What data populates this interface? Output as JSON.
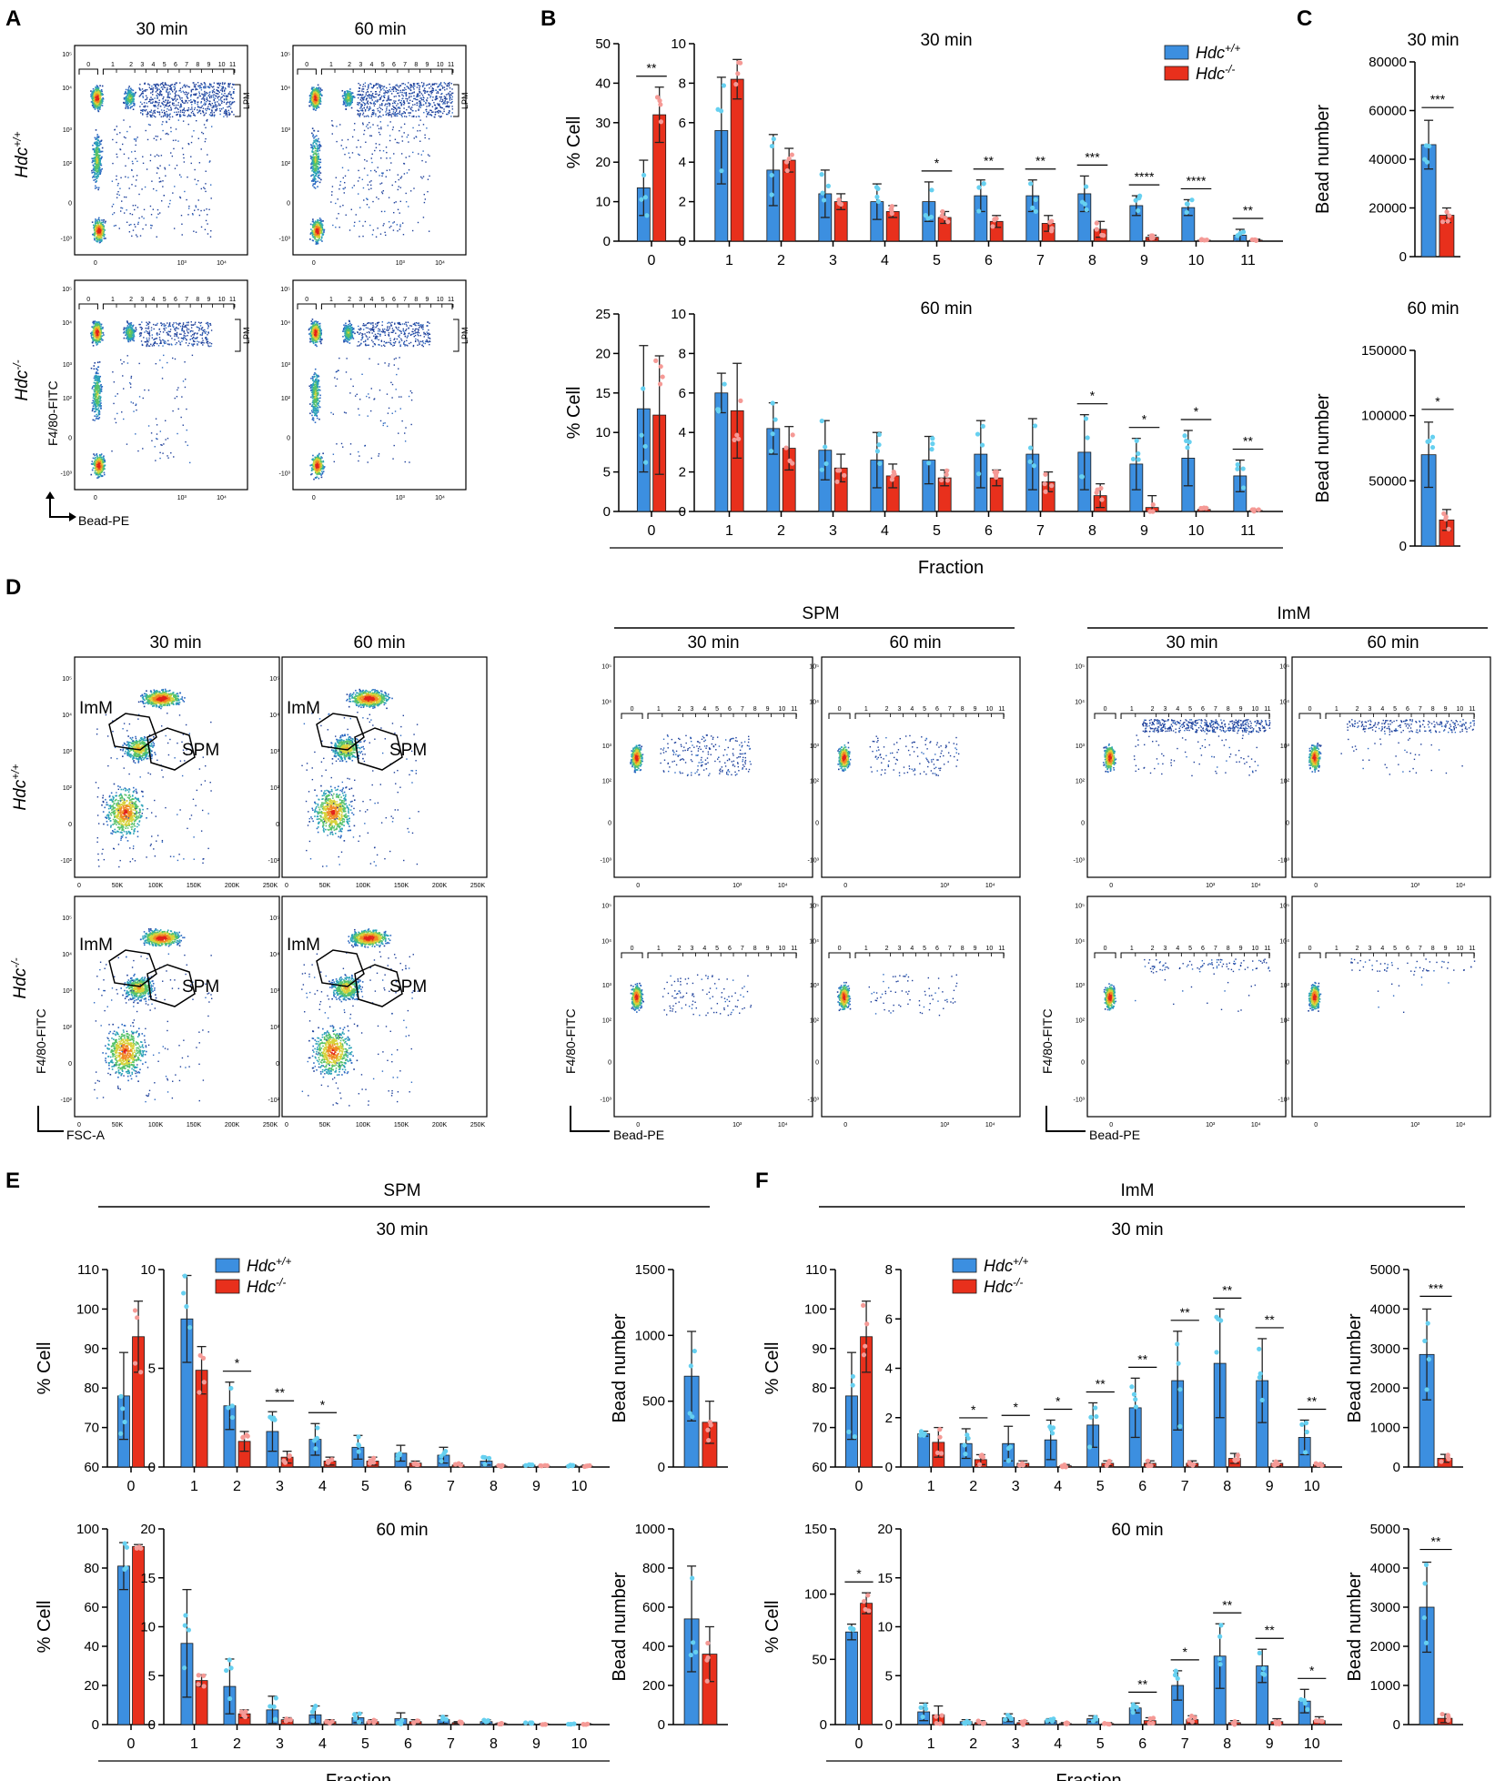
{
  "colors": {
    "wt": "#3c8fe0",
    "ko": "#e8301c",
    "wt_dot": "#66d0f0",
    "ko_dot": "#f59a96"
  },
  "panel_labels": {
    "A": "A",
    "B": "B",
    "C": "C",
    "D": "D",
    "E": "E",
    "F": "F"
  },
  "legend": {
    "wt_base": "Hdc",
    "wt_sup": "+/+",
    "ko_base": "Hdc",
    "ko_sup": "-/-"
  },
  "axis_labels": {
    "cell_pct": "% Cell",
    "bead_number": "Bead number",
    "fraction": "Fraction",
    "f480": "F4/80-FITC",
    "bead_pe": "Bead-PE",
    "fsc": "FSC-A"
  },
  "time_labels": {
    "t30": "30 min",
    "t60": "60 min"
  },
  "pop_labels": {
    "spm": "SPM",
    "imm": "ImM",
    "lpm": "LPM"
  },
  "genotype_labels": {
    "wt_base": "Hdc",
    "wt_sup": "+/+",
    "ko_base": "Hdc",
    "ko_sup": "-/-"
  },
  "flow": {
    "gate_labels": [
      "0",
      "1",
      "2",
      "3",
      "4",
      "5",
      "6",
      "7",
      "8",
      "9",
      "10",
      "11"
    ],
    "log_ticks_y": [
      "10⁵",
      "10⁴",
      "10³",
      "10²",
      "0",
      "-10³"
    ],
    "log_ticks_x": [
      "0",
      "10³",
      "10⁴"
    ],
    "fsc_ticks": [
      "0",
      "50K",
      "100K",
      "150K",
      "200K",
      "250K"
    ],
    "small_y": [
      "10⁵",
      "10⁴",
      "10³",
      "10²",
      "0",
      "-10²"
    ]
  },
  "chart_data": [
    {
      "id": "B30",
      "type": "bar",
      "title": "30 min",
      "ylabel": "% Cell",
      "categories": [
        "0",
        "1",
        "2",
        "3",
        "4",
        "5",
        "6",
        "7",
        "8",
        "9",
        "10",
        "11"
      ],
      "frac0": {
        "ylim": [
          0,
          50
        ],
        "ticks": [
          "0",
          "10",
          "20",
          "30",
          "40",
          "50"
        ],
        "series": [
          {
            "name": "Hdc+/+",
            "values": [
              13.5
            ],
            "err": [
              7
            ]
          },
          {
            "name": "Hdc-/-",
            "values": [
              32
            ],
            "err": [
              7
            ]
          }
        ],
        "sig": [
          "**"
        ]
      },
      "fractions": {
        "ylim": [
          0,
          10
        ],
        "ticks": [
          "0",
          "2",
          "4",
          "6",
          "8",
          "10"
        ],
        "series": [
          {
            "name": "Hdc+/+",
            "values": [
              5.6,
              3.6,
              2.4,
              2.0,
              2.0,
              2.3,
              2.3,
              2.4,
              1.8,
              1.7,
              0.3
            ],
            "err": [
              2.7,
              1.8,
              1.2,
              0.9,
              1.0,
              0.8,
              0.8,
              0.9,
              0.5,
              0.4,
              0.3
            ]
          },
          {
            "name": "Hdc-/-",
            "values": [
              8.2,
              4.1,
              2.0,
              1.5,
              1.2,
              1.0,
              0.9,
              0.6,
              0.2,
              0.05,
              0.05
            ],
            "err": [
              1.0,
              0.6,
              0.4,
              0.3,
              0.3,
              0.3,
              0.4,
              0.4,
              0.1,
              0.05,
              0.05
            ]
          }
        ],
        "sig": [
          "",
          "",
          "",
          "",
          "*",
          "**",
          "**",
          "***",
          "****",
          "****",
          "**"
        ]
      }
    },
    {
      "id": "B60",
      "type": "bar",
      "title": "60 min",
      "ylabel": "% Cell",
      "xlabel": "Fraction",
      "categories": [
        "0",
        "1",
        "2",
        "3",
        "4",
        "5",
        "6",
        "7",
        "8",
        "9",
        "10",
        "11"
      ],
      "frac0": {
        "ylim": [
          0,
          25
        ],
        "ticks": [
          "0",
          "5",
          "10",
          "15",
          "20",
          "25"
        ],
        "series": [
          {
            "name": "Hdc+/+",
            "values": [
              13
            ],
            "err": [
              8
            ]
          },
          {
            "name": "Hdc-/-",
            "values": [
              12.2
            ],
            "err": [
              7.5
            ]
          }
        ],
        "sig": [
          ""
        ]
      },
      "fractions": {
        "ylim": [
          0,
          10
        ],
        "ticks": [
          "0",
          "2",
          "4",
          "6",
          "8",
          "10"
        ],
        "series": [
          {
            "name": "Hdc+/+",
            "values": [
              6.0,
              4.2,
              3.1,
              2.6,
              2.6,
              2.9,
              2.9,
              3.0,
              2.4,
              2.7,
              1.8
            ],
            "err": [
              1.0,
              1.3,
              1.5,
              1.4,
              1.2,
              1.7,
              1.8,
              1.9,
              1.3,
              1.4,
              0.8
            ]
          },
          {
            "name": "Hdc-/-",
            "values": [
              5.1,
              3.2,
              2.2,
              1.8,
              1.7,
              1.7,
              1.5,
              0.8,
              0.2,
              0.1,
              0.05
            ],
            "err": [
              2.4,
              1.1,
              0.7,
              0.6,
              0.4,
              0.4,
              0.5,
              0.6,
              0.6,
              0.1,
              0.05
            ]
          }
        ],
        "sig": [
          "",
          "",
          "",
          "",
          "",
          "",
          "",
          "*",
          "*",
          "*",
          "**"
        ]
      }
    },
    {
      "id": "C30",
      "type": "bar",
      "title": "30 min",
      "ylabel": "Bead number",
      "ylim": [
        0,
        80000
      ],
      "ticks": [
        "0",
        "20000",
        "40000",
        "60000",
        "80000"
      ],
      "series": [
        {
          "name": "Hdc+/+",
          "values": [
            46000
          ],
          "err": [
            10000
          ]
        },
        {
          "name": "Hdc-/-",
          "values": [
            17000
          ],
          "err": [
            3000
          ]
        }
      ],
      "sig": "***"
    },
    {
      "id": "C60",
      "type": "bar",
      "title": "60 min",
      "ylabel": "Bead number",
      "ylim": [
        0,
        150000
      ],
      "ticks": [
        "0",
        "50000",
        "100000",
        "150000"
      ],
      "series": [
        {
          "name": "Hdc+/+",
          "values": [
            70000
          ],
          "err": [
            25000
          ]
        },
        {
          "name": "Hdc-/-",
          "values": [
            20000
          ],
          "err": [
            8000
          ]
        }
      ],
      "sig": "*"
    },
    {
      "id": "E30",
      "type": "bar",
      "title": "30 min",
      "ylabel": "% Cell",
      "categories": [
        "0",
        "1",
        "2",
        "3",
        "4",
        "5",
        "6",
        "7",
        "8",
        "9",
        "10"
      ],
      "frac0": {
        "ylim": [
          60,
          110
        ],
        "ticks": [
          "60",
          "70",
          "80",
          "90",
          "100",
          "110"
        ],
        "series": [
          {
            "name": "Hdc+/+",
            "values": [
              78
            ],
            "err": [
              11
            ]
          },
          {
            "name": "Hdc-/-",
            "values": [
              93
            ],
            "err": [
              9
            ]
          }
        ],
        "sig": [
          ""
        ]
      },
      "fractions": {
        "ylim": [
          0,
          10
        ],
        "ticks": [
          "0",
          "5",
          "10"
        ],
        "series": [
          {
            "name": "Hdc+/+",
            "values": [
              7.5,
              3.1,
              1.8,
              1.4,
              1.0,
              0.7,
              0.6,
              0.3,
              0.1,
              0.05
            ],
            "err": [
              2.2,
              1.2,
              1.0,
              0.8,
              0.6,
              0.4,
              0.4,
              0.2,
              0.05,
              0.05
            ]
          },
          {
            "name": "Hdc-/-",
            "values": [
              4.9,
              1.3,
              0.5,
              0.3,
              0.3,
              0.2,
              0.1,
              0.05,
              0.05,
              0.05
            ],
            "err": [
              1.2,
              0.5,
              0.3,
              0.2,
              0.2,
              0.1,
              0.1,
              0.05,
              0.05,
              0.05
            ]
          }
        ],
        "sig": [
          "",
          "*",
          "**",
          "*",
          "",
          "",
          "",
          "",
          "",
          ""
        ]
      },
      "bead": {
        "ylim": [
          0,
          1500
        ],
        "ticks": [
          "0",
          "500",
          "1000",
          "1500"
        ],
        "series": [
          {
            "name": "Hdc+/+",
            "values": [
              690
            ],
            "err": [
              340
            ]
          },
          {
            "name": "Hdc-/-",
            "values": [
              340
            ],
            "err": [
              160
            ]
          }
        ],
        "sig": ""
      }
    },
    {
      "id": "E60",
      "type": "bar",
      "title": "60 min",
      "ylabel": "% Cell",
      "xlabel": "Fraction",
      "categories": [
        "0",
        "1",
        "2",
        "3",
        "4",
        "5",
        "6",
        "7",
        "8",
        "9",
        "10"
      ],
      "frac0": {
        "ylim": [
          0,
          100
        ],
        "ticks": [
          "0",
          "20",
          "40",
          "60",
          "80",
          "100"
        ],
        "series": [
          {
            "name": "Hdc+/+",
            "values": [
              81
            ],
            "err": [
              12
            ]
          },
          {
            "name": "Hdc-/-",
            "values": [
              91
            ],
            "err": [
              1
            ]
          }
        ],
        "sig": [
          ""
        ]
      },
      "fractions": {
        "ylim": [
          0,
          20
        ],
        "ticks": [
          "0",
          "5",
          "10",
          "15",
          "20"
        ],
        "series": [
          {
            "name": "Hdc+/+",
            "values": [
              8.3,
              3.9,
              1.5,
              1.0,
              0.7,
              0.6,
              0.5,
              0.3,
              0.1,
              0.05
            ],
            "err": [
              5.5,
              2.8,
              1.4,
              0.9,
              0.5,
              0.6,
              0.4,
              0.2,
              0.1,
              0.05
            ]
          },
          {
            "name": "Hdc-/-",
            "values": [
              4.5,
              1.1,
              0.5,
              0.3,
              0.3,
              0.3,
              0.2,
              0.1,
              0.05,
              0.05
            ],
            "err": [
              0.6,
              0.4,
              0.2,
              0.2,
              0.2,
              0.2,
              0.1,
              0.05,
              0.05,
              0.05
            ]
          }
        ],
        "sig": [
          "",
          "",
          "",
          "",
          "",
          "",
          "",
          "",
          "",
          ""
        ]
      },
      "bead": {
        "ylim": [
          0,
          1000
        ],
        "ticks": [
          "0",
          "200",
          "400",
          "600",
          "800",
          "1000"
        ],
        "series": [
          {
            "name": "Hdc+/+",
            "values": [
              540
            ],
            "err": [
              270
            ]
          },
          {
            "name": "Hdc-/-",
            "values": [
              360
            ],
            "err": [
              140
            ]
          }
        ],
        "sig": ""
      }
    },
    {
      "id": "F30",
      "type": "bar",
      "title": "30 min",
      "ylabel": "% Cell",
      "categories": [
        "0",
        "1",
        "2",
        "3",
        "4",
        "5",
        "6",
        "7",
        "8",
        "9",
        "10"
      ],
      "frac0": {
        "ylim": [
          60,
          110
        ],
        "ticks": [
          "60",
          "70",
          "80",
          "90",
          "100",
          "110"
        ],
        "series": [
          {
            "name": "Hdc+/+",
            "values": [
              78
            ],
            "err": [
              11
            ]
          },
          {
            "name": "Hdc-/-",
            "values": [
              93
            ],
            "err": [
              9
            ]
          }
        ],
        "sig": [
          ""
        ]
      },
      "fractions": {
        "ylim": [
          0,
          8
        ],
        "ticks": [
          "0",
          "2",
          "4",
          "6",
          "8"
        ],
        "series": [
          {
            "name": "Hdc+/+",
            "values": [
              1.35,
              0.95,
              0.95,
              1.1,
              1.7,
              2.4,
              3.5,
              4.2,
              3.5,
              1.2
            ],
            "err": [
              0.1,
              0.6,
              0.7,
              0.8,
              0.9,
              1.2,
              2.0,
              2.2,
              1.7,
              0.7
            ]
          },
          {
            "name": "Hdc-/-",
            "values": [
              1.0,
              0.3,
              0.15,
              0.05,
              0.15,
              0.15,
              0.15,
              0.35,
              0.15,
              0.1
            ],
            "err": [
              0.6,
              0.2,
              0.1,
              0.05,
              0.1,
              0.1,
              0.1,
              0.2,
              0.1,
              0.05
            ]
          }
        ],
        "sig": [
          "",
          "*",
          "*",
          "*",
          "**",
          "**",
          "**",
          "**",
          "**",
          "**"
        ]
      },
      "bead": {
        "ylim": [
          0,
          5000
        ],
        "ticks": [
          "0",
          "1000",
          "2000",
          "3000",
          "4000",
          "5000"
        ],
        "series": [
          {
            "name": "Hdc+/+",
            "values": [
              2850
            ],
            "err": [
              1150
            ]
          },
          {
            "name": "Hdc-/-",
            "values": [
              220
            ],
            "err": [
              100
            ]
          }
        ],
        "sig": "***"
      }
    },
    {
      "id": "F60",
      "type": "bar",
      "title": "60 min",
      "ylabel": "% Cell",
      "xlabel": "Fraction",
      "categories": [
        "0",
        "1",
        "2",
        "3",
        "4",
        "5",
        "6",
        "7",
        "8",
        "9",
        "10"
      ],
      "frac0": {
        "ylim": [
          0,
          150
        ],
        "ticks": [
          "0",
          "50",
          "100",
          "150"
        ],
        "series": [
          {
            "name": "Hdc+/+",
            "values": [
              71
            ],
            "err": [
              6
            ]
          },
          {
            "name": "Hdc-/-",
            "values": [
              93
            ],
            "err": [
              8
            ]
          }
        ],
        "sig": [
          "*"
        ]
      },
      "fractions": {
        "ylim": [
          0,
          20
        ],
        "ticks": [
          "0",
          "5",
          "10",
          "15",
          "20"
        ],
        "series": [
          {
            "name": "Hdc+/+",
            "values": [
              1.3,
              0.3,
              0.7,
              0.4,
              0.6,
              1.7,
              4.0,
              7.0,
              6.0,
              2.4
            ],
            "err": [
              0.9,
              0.2,
              0.4,
              0.2,
              0.3,
              0.5,
              1.5,
              3.3,
              1.7,
              1.2
            ]
          },
          {
            "name": "Hdc-/-",
            "values": [
              1.0,
              0.2,
              0.2,
              0.1,
              0.1,
              0.4,
              0.5,
              0.2,
              0.3,
              0.4
            ],
            "err": [
              0.9,
              0.2,
              0.2,
              0.1,
              0.1,
              0.3,
              0.4,
              0.2,
              0.3,
              0.4
            ]
          }
        ],
        "sig": [
          "",
          "",
          "",
          "",
          "",
          "**",
          "*",
          "**",
          "**",
          "*"
        ]
      },
      "bead": {
        "ylim": [
          0,
          5000
        ],
        "ticks": [
          "0",
          "1000",
          "2000",
          "3000",
          "4000",
          "5000"
        ],
        "series": [
          {
            "name": "Hdc+/+",
            "values": [
              3000
            ],
            "err": [
              1150
            ]
          },
          {
            "name": "Hdc-/-",
            "values": [
              160
            ],
            "err": [
              110
            ]
          }
        ],
        "sig": "**"
      }
    }
  ]
}
